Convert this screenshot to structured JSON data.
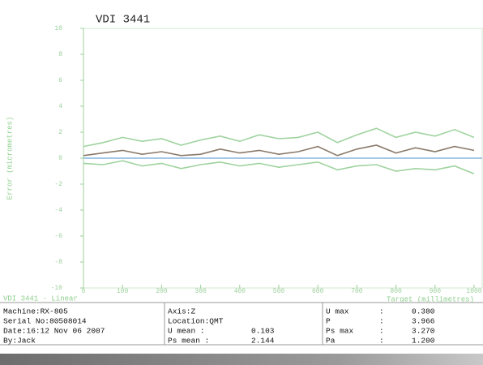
{
  "chart_data": {
    "type": "line",
    "title": "VDI 3441",
    "y_label": "Error (micrometres)",
    "x_label": "Target (millimetres)",
    "x": [
      0,
      50,
      100,
      150,
      200,
      250,
      300,
      350,
      400,
      450,
      500,
      550,
      600,
      650,
      700,
      750,
      800,
      850,
      900,
      950,
      1000
    ],
    "series": [
      {
        "color": "#9fd39f",
        "values": [
          0.9,
          1.2,
          1.6,
          1.3,
          1.5,
          1.0,
          1.4,
          1.7,
          1.3,
          1.8,
          1.5,
          1.6,
          2.0,
          1.2,
          1.8,
          2.3,
          1.6,
          2.0,
          1.7,
          2.2,
          1.6
        ]
      },
      {
        "color": "#8a7a6a",
        "values": [
          0.2,
          0.4,
          0.6,
          0.3,
          0.5,
          0.2,
          0.3,
          0.7,
          0.4,
          0.6,
          0.3,
          0.5,
          0.9,
          0.2,
          0.7,
          1.0,
          0.4,
          0.8,
          0.5,
          0.9,
          0.6
        ]
      },
      {
        "color": "#9fd39f",
        "values": [
          -0.4,
          -0.5,
          -0.2,
          -0.6,
          -0.4,
          -0.8,
          -0.5,
          -0.3,
          -0.6,
          -0.4,
          -0.7,
          -0.5,
          -0.3,
          -0.9,
          -0.6,
          -0.5,
          -1.0,
          -0.8,
          -0.9,
          -0.6,
          -1.2
        ]
      }
    ],
    "xlim": [
      0,
      1000
    ],
    "xticks": [
      0,
      100,
      200,
      300,
      400,
      500,
      600,
      700,
      800,
      900,
      1000
    ],
    "ylim": [
      -10,
      10
    ],
    "yticks": [
      10,
      8,
      6,
      4,
      2,
      0,
      -2,
      -4,
      -6,
      -8,
      -10
    ],
    "zero_line_color": "#6fa8dc"
  },
  "report": {
    "heading": "VDI 3441 - Linear",
    "left": [
      "Machine:RX-805",
      "Serial No:80508014",
      "Date:16:12 Nov 06 2007",
      "By:Jack"
    ],
    "middle": [
      {
        "label": "Axis:Z"
      },
      {
        "label": "Location:QMT"
      },
      {
        "label": "U mean :",
        "value": "0.103"
      },
      {
        "label": "Ps mean :",
        "value": "2.144"
      }
    ],
    "right": [
      {
        "label": "U max",
        "value": "0.380"
      },
      {
        "label": "P",
        "value": "3.966"
      },
      {
        "label": "Ps max",
        "value": "3.270"
      },
      {
        "label": "Pa",
        "value": "1.200"
      }
    ],
    "separator": ":"
  }
}
